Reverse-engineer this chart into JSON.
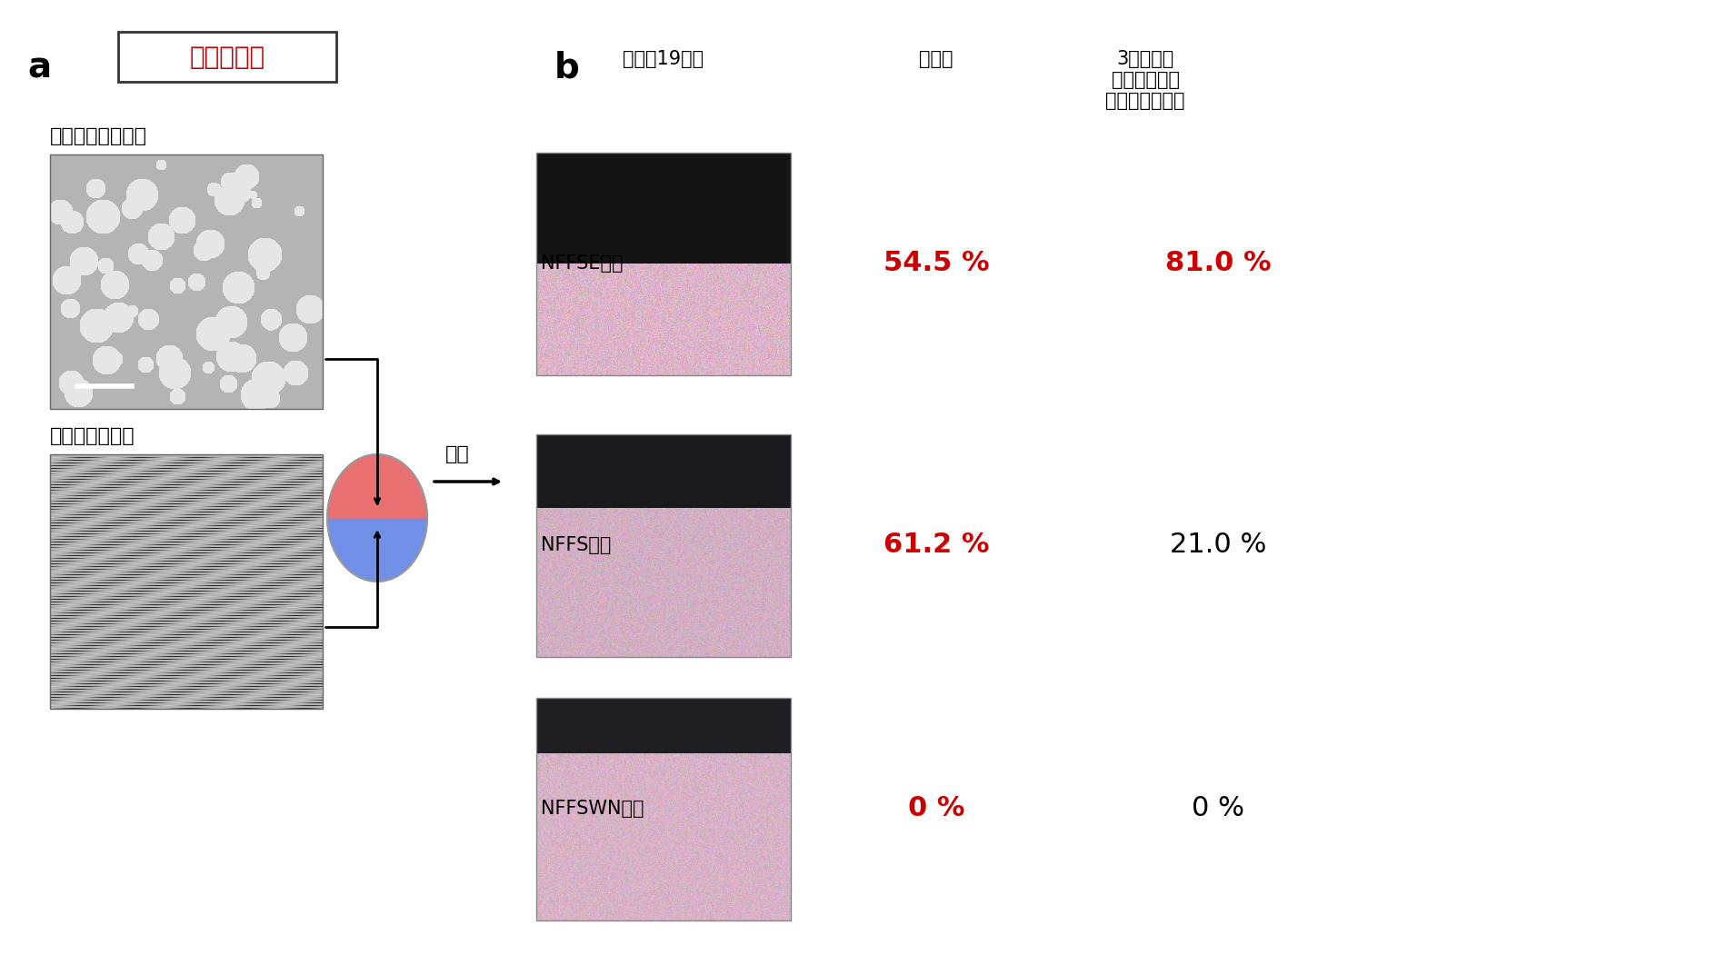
{
  "panel_a_label": "a",
  "panel_b_label": "b",
  "title_box_text": "器官原基法",
  "title_box_color": "#cc0000",
  "cell_label_top": "培養毛包上皮細胞",
  "cell_label_bottom": "培養毛乳頭細胞",
  "transplant_label": "移植",
  "col_header_day": "移植後19日目",
  "col_header_rate": "発毛率",
  "col_header_cycle": "3回以上の\n毛周期を示す\n再生毛包の割合",
  "rows": [
    {
      "label": "NFFSE培地",
      "rate": "54.5 %",
      "cycle": "81.0 %",
      "rate_color": "#cc0000",
      "cycle_color": "#cc0000"
    },
    {
      "label": "NFFS培地",
      "rate": "61.2 %",
      "cycle": "21.0 %",
      "rate_color": "#cc0000",
      "cycle_color": "#000000"
    },
    {
      "label": "NFFSWN培地",
      "rate": "0 %",
      "cycle": "0 %",
      "rate_color": "#cc0000",
      "cycle_color": "#000000"
    }
  ],
  "background_color": "#ffffff",
  "text_color": "#000000",
  "sphere_top_color": "#e87070",
  "sphere_bottom_color": "#7090e8"
}
